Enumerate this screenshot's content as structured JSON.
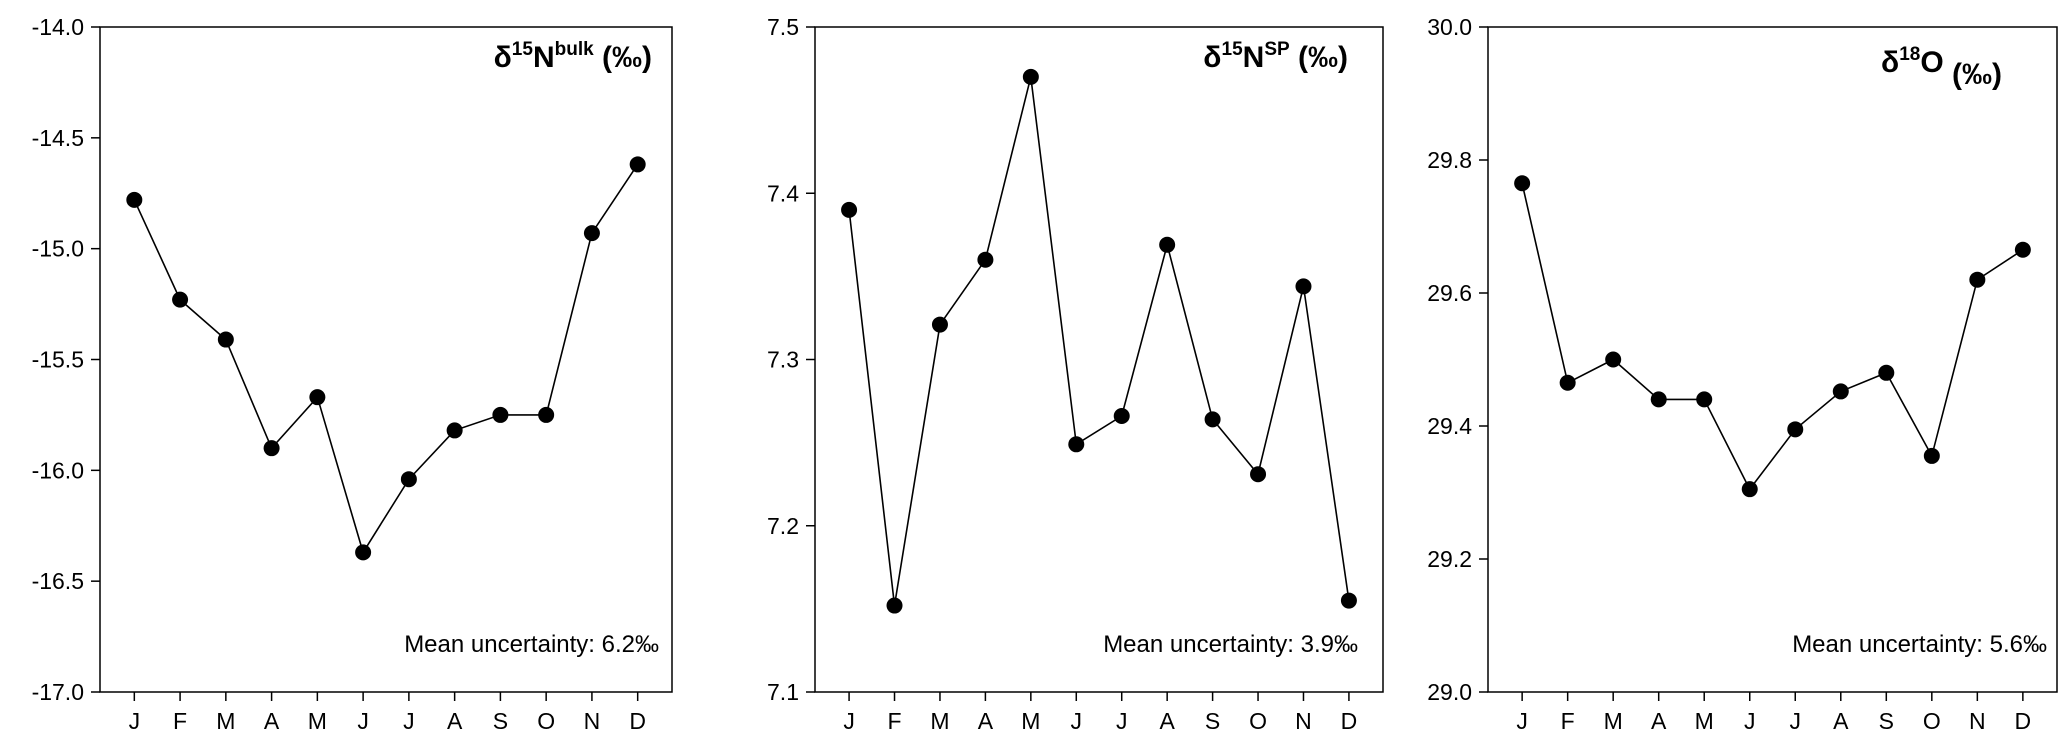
{
  "chart_data": [
    {
      "type": "line",
      "title_parts": [
        "δ",
        "15",
        "N",
        "bulk",
        " (‰)"
      ],
      "annotation": "Mean uncertainty: 6.2‰",
      "categories": [
        "J",
        "F",
        "M",
        "A",
        "M",
        "J",
        "J",
        "A",
        "S",
        "O",
        "N",
        "D"
      ],
      "values": [
        -14.78,
        -15.23,
        -15.41,
        -15.9,
        -15.67,
        -16.37,
        -16.04,
        -15.82,
        -15.75,
        -15.75,
        -14.93,
        -14.62
      ],
      "ylim": [
        -17.0,
        -14.0
      ],
      "yticks": [
        "-17.0",
        "-16.5",
        "-16.0",
        "-15.5",
        "-15.0",
        "-14.5",
        "-14.0"
      ],
      "grid": false,
      "legend": "none"
    },
    {
      "type": "line",
      "title_parts": [
        "δ",
        "15",
        "N",
        "SP",
        " (‰)"
      ],
      "annotation": "Mean uncertainty: 3.9‰",
      "categories": [
        "J",
        "F",
        "M",
        "A",
        "M",
        "J",
        "J",
        "A",
        "S",
        "O",
        "N",
        "D"
      ],
      "values": [
        7.39,
        7.152,
        7.321,
        7.36,
        7.47,
        7.249,
        7.266,
        7.369,
        7.264,
        7.231,
        7.344,
        7.155
      ],
      "ylim": [
        7.1,
        7.5
      ],
      "yticks": [
        "7.1",
        "7.2",
        "7.3",
        "7.4",
        "7.5"
      ],
      "grid": false,
      "legend": "none"
    },
    {
      "type": "line",
      "title_parts": [
        "δ",
        "18",
        "O",
        "",
        " (‰)"
      ],
      "annotation": "Mean uncertainty: 5.6‰",
      "categories": [
        "J",
        "F",
        "M",
        "A",
        "M",
        "J",
        "J",
        "A",
        "S",
        "O",
        "N",
        "D"
      ],
      "values": [
        29.765,
        29.465,
        29.5,
        29.44,
        29.44,
        29.305,
        29.395,
        29.452,
        29.48,
        29.355,
        29.62,
        29.665
      ],
      "ylim": [
        29.0,
        30.0
      ],
      "yticks": [
        "29.0",
        "29.2",
        "29.4",
        "29.6",
        "29.8",
        "30.0"
      ],
      "grid": false,
      "legend": "none"
    }
  ],
  "style": {
    "line_color": "#000000",
    "marker_color": "#000000",
    "background": "#ffffff"
  }
}
